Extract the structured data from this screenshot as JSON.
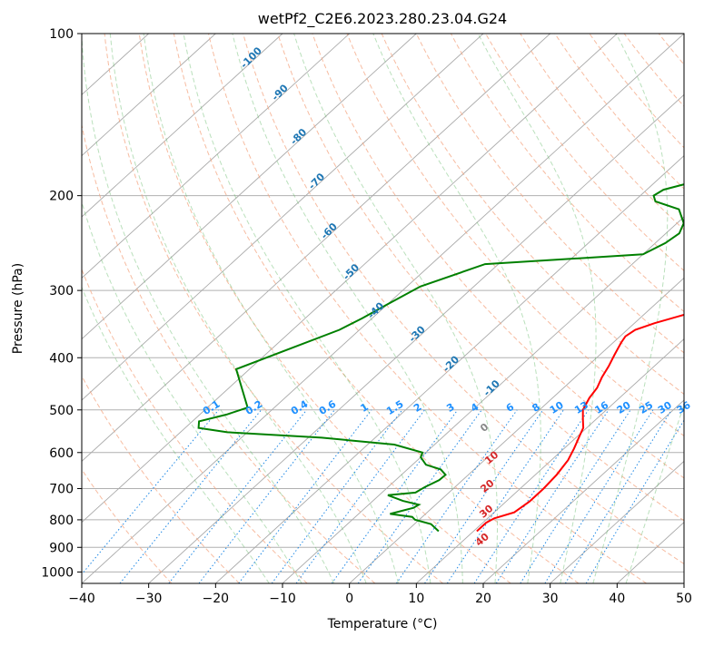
{
  "chart_data": {
    "type": "line",
    "title": "wetPf2_C2E6.2023.280.23.04.G24",
    "xlabel": "Temperature (°C)",
    "ylabel": "Pressure (hPa)",
    "xlim": [
      -40,
      50
    ],
    "ylim": [
      1050,
      100
    ],
    "y_scale": "log",
    "x_ticks": [
      "−40",
      "−30",
      "−20",
      "−10",
      "0",
      "10",
      "20",
      "30",
      "40",
      "50"
    ],
    "x_tick_values": [
      -40,
      -30,
      -20,
      -10,
      0,
      10,
      20,
      30,
      40,
      50
    ],
    "y_ticks": [
      "100",
      "200",
      "300",
      "400",
      "500",
      "600",
      "700",
      "800",
      "900",
      "1000"
    ],
    "y_tick_values": [
      100,
      200,
      300,
      400,
      500,
      600,
      700,
      800,
      900,
      1000
    ],
    "grid": true,
    "series": [
      {
        "color": "#ff0000",
        "description": "temperature",
        "points": [
          [
            10.5,
            840
          ],
          [
            10.5,
            810
          ],
          [
            11,
            795
          ],
          [
            13,
            775
          ],
          [
            13.5,
            740
          ],
          [
            13.5,
            700
          ],
          [
            13.2,
            660
          ],
          [
            12.5,
            620
          ],
          [
            11.5,
            590
          ],
          [
            10.3,
            560
          ],
          [
            9.5,
            540
          ],
          [
            8,
            520
          ],
          [
            6.5,
            500
          ],
          [
            5.5,
            475
          ],
          [
            5,
            455
          ],
          [
            4,
            435
          ],
          [
            3.2,
            415
          ],
          [
            2.2,
            395
          ],
          [
            1.2,
            375
          ],
          [
            0.8,
            365
          ],
          [
            1.2,
            355
          ],
          [
            3,
            345
          ],
          [
            5.5,
            335
          ],
          [
            8,
            325
          ],
          [
            10.5,
            310
          ],
          [
            12,
            296
          ],
          [
            12.8,
            283
          ],
          [
            12.8,
            270
          ],
          [
            12.5,
            255
          ],
          [
            11.5,
            240
          ],
          [
            10.3,
            226
          ],
          [
            9.2,
            210
          ],
          [
            8.7,
            195
          ],
          [
            8.3,
            180
          ],
          [
            7.8,
            165
          ],
          [
            7.4,
            152
          ],
          [
            7.4,
            142
          ],
          [
            7.6,
            133
          ],
          [
            8,
            125
          ],
          [
            8.8,
            118
          ],
          [
            10,
            112
          ],
          [
            11.5,
            108
          ],
          [
            13,
            104
          ],
          [
            14.5,
            100
          ]
        ]
      },
      {
        "color": "#008000",
        "description": "dewpoint",
        "points": [
          [
            4.8,
            840
          ],
          [
            2.5,
            815
          ],
          [
            -0.6,
            800
          ],
          [
            -1.5,
            790
          ],
          [
            -5.3,
            780
          ],
          [
            -2.8,
            760
          ],
          [
            -2.5,
            750
          ],
          [
            -5.5,
            738
          ],
          [
            -8.7,
            720
          ],
          [
            -5,
            712
          ],
          [
            -4.5,
            695
          ],
          [
            -3.5,
            675
          ],
          [
            -3.4,
            660
          ],
          [
            -5,
            645
          ],
          [
            -8,
            632
          ],
          [
            -10,
            612
          ],
          [
            -10.5,
            600
          ],
          [
            -16,
            580
          ],
          [
            -28,
            563
          ],
          [
            -43,
            550
          ],
          [
            -48,
            540
          ],
          [
            -49,
            525
          ],
          [
            -46,
            510
          ],
          [
            -44,
            495
          ],
          [
            -52,
            420
          ],
          [
            -43,
            355
          ],
          [
            -41.5,
            338
          ],
          [
            -40,
            318
          ],
          [
            -38,
            295
          ],
          [
            -32,
            268
          ],
          [
            -10,
            257
          ],
          [
            -8.5,
            245
          ],
          [
            -8,
            235
          ],
          [
            -9,
            225
          ],
          [
            -12,
            212
          ],
          [
            -16.8,
            205
          ],
          [
            -18,
            200
          ],
          [
            -17.5,
            195
          ],
          [
            -14,
            188
          ],
          [
            -12.5,
            182
          ],
          [
            -11,
            175
          ],
          [
            -9.5,
            163
          ],
          [
            -8,
            152
          ],
          [
            -5.5,
            142
          ],
          [
            -3.5,
            135
          ],
          [
            -2,
            128
          ],
          [
            -0.5,
            120
          ],
          [
            0.3,
            114
          ],
          [
            1.2,
            108
          ],
          [
            2.3,
            103
          ],
          [
            3,
            100
          ]
        ]
      }
    ],
    "dry_adiabat_labels": [
      "-100",
      "-90",
      "-80",
      "-70",
      "-60",
      "-50",
      "-40",
      "-30",
      "-20",
      "-10"
    ],
    "moist_adiabat_labels": [
      "0",
      "10",
      "20",
      "30",
      "40"
    ],
    "mixing_ratio_labels": [
      "0.1",
      "0.2",
      "0.4",
      "0.6",
      "1",
      "1.5",
      "2",
      "3",
      "4",
      "6",
      "8",
      "10",
      "13",
      "16",
      "20",
      "25",
      "30",
      "36"
    ]
  }
}
